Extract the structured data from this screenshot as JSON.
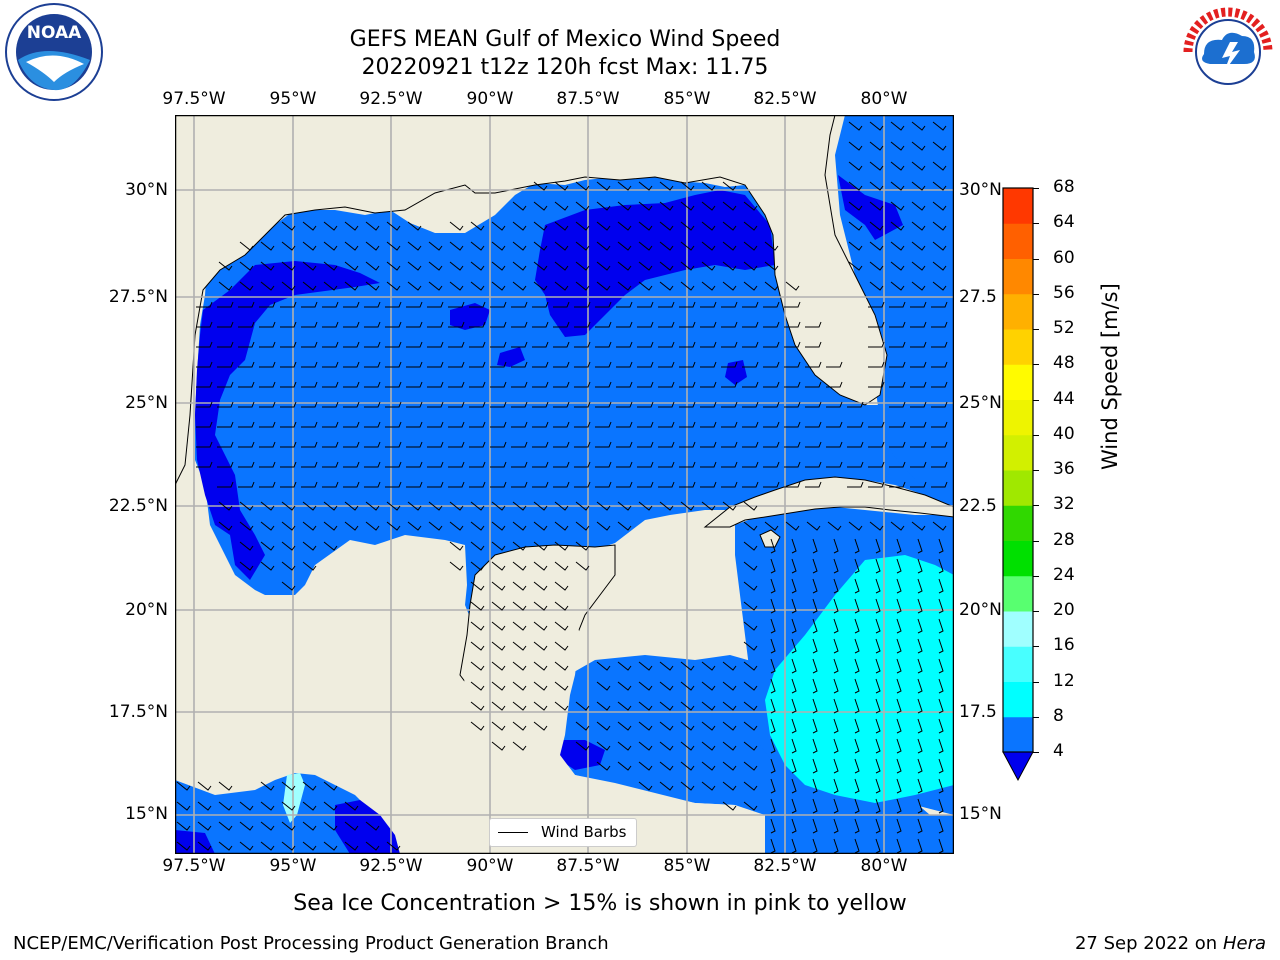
{
  "title_line1": "GEFS MEAN Gulf of Mexico Wind Speed",
  "title_line2": "20220921 t12z 120h fcst   Max: 11.75",
  "x_ticks": [
    "97.5°W",
    "95°W",
    "92.5°W",
    "90°W",
    "87.5°W",
    "85°W",
    "82.5°W",
    "80°W"
  ],
  "y_ticks_left": [
    "30°N",
    "27.5°N",
    "25°N",
    "22.5°N",
    "20°N",
    "17.5°N",
    "15°N"
  ],
  "y_ticks_right": [
    "30°N",
    "27.5",
    "25°N",
    "22.5",
    "20°N",
    "17.5",
    "15°N"
  ],
  "legend_label": "Wind Barbs",
  "colorbar": {
    "label": "Wind Speed [m/s]",
    "ticks": [
      "4",
      "8",
      "12",
      "16",
      "20",
      "24",
      "28",
      "32",
      "36",
      "40",
      "44",
      "48",
      "52",
      "56",
      "60",
      "64",
      "68"
    ],
    "colors": [
      "#0a75ff",
      "#00ffff",
      "#48ffff",
      "#a0ffff",
      "#58ff70",
      "#00e000",
      "#30d800",
      "#a0e800",
      "#d2f000",
      "#eef400",
      "#fffb00",
      "#ffd200",
      "#ffb000",
      "#ff8800",
      "#ff6000",
      "#ff3800",
      "#ff0000"
    ],
    "extend_color": "#0000ee"
  },
  "chart_data": {
    "type": "heatmap",
    "title": "GEFS MEAN Gulf of Mexico Wind Speed",
    "subtitle": "20220921 t12z 120h fcst   Max: 11.75",
    "max_value": 11.75,
    "units": "m/s",
    "lon_range": [
      -98,
      -78
    ],
    "lat_range": [
      14,
      31.5
    ],
    "levels": [
      4,
      8,
      12,
      16,
      20,
      24,
      28,
      32,
      36,
      40,
      44,
      48,
      52,
      56,
      60,
      64,
      68
    ],
    "gridlines": true,
    "legend_placement": "bottom-center"
  },
  "map_colors": {
    "land": "#efedde",
    "band_below_4": "#0000ee",
    "band_4_8": "#0a75ff",
    "band_8_12": "#00ffff"
  },
  "subtitle": "Sea Ice Concentration > 15% is shown in pink to yellow",
  "footer_left": "NCEP/EMC/Verification Post Processing Product Generation Branch",
  "footer_date": "27 Sep 2022 on",
  "footer_machine": "Hera",
  "logos": {
    "left": "NOAA",
    "right": "NATIONAL WEATHER SERVICE"
  }
}
